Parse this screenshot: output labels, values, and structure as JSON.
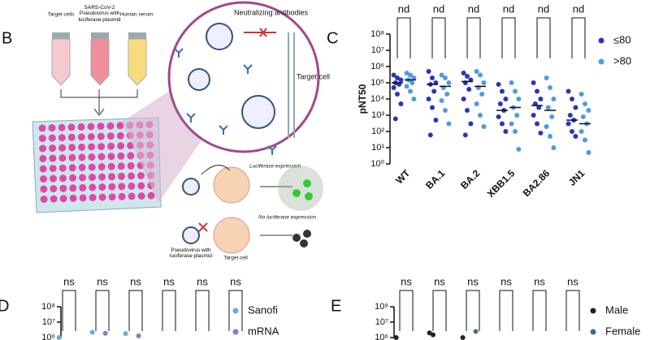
{
  "diagram": {
    "panel": "B",
    "tube_labels": [
      "Target cells",
      "SARS-CoV-2 Pseudovirus with luciferase plasmid",
      "Human serum"
    ],
    "neutralizing": "Neutralizing antibodies",
    "zoom_target": "Target cell",
    "luciferase": "Luciferase expression",
    "no_luciferase": "No luciferase expression",
    "pseudovirus": "Pseudovirus with luciferase plasmid",
    "target_cell": "Target cell"
  },
  "chart_data": [
    {
      "type": "dot",
      "panel": "C",
      "ylabel": "pNT50",
      "log": true,
      "categories": [
        "WT",
        "BA.1",
        "BA.2",
        "XBB1.5",
        "BA2.86",
        "JN1"
      ],
      "annotations": [
        "nd",
        "nd",
        "nd",
        "nd",
        "nd",
        "nd"
      ],
      "ylim": [
        1,
        100000000
      ],
      "yticks": [
        {
          "value": 1,
          "label": "10⁰"
        },
        {
          "value": 10,
          "label": "10¹"
        },
        {
          "value": 100,
          "label": "10²"
        },
        {
          "value": 1000,
          "label": "10³"
        },
        {
          "value": 10000,
          "label": "10⁴"
        },
        {
          "value": 100000,
          "label": "10⁵"
        },
        {
          "value": 1000000,
          "label": "10⁶"
        },
        {
          "value": 10000000,
          "label": "10⁷"
        },
        {
          "value": 100000000,
          "label": "10⁸"
        }
      ],
      "legend": "right",
      "series": [
        {
          "name": "≤80",
          "color": "#2a35b8",
          "values": [
            [
              300000,
              200000,
              150000,
              100000,
              80000,
              50000,
              20000,
              5000,
              600
            ],
            [
              500000,
              200000,
              100000,
              80000,
              30000,
              10000,
              3000,
              500,
              60
            ],
            [
              400000,
              250000,
              150000,
              100000,
              40000,
              10000,
              2000,
              300,
              60
            ],
            [
              80000,
              30000,
              10000,
              5000,
              2000,
              800,
              300,
              100
            ],
            [
              100000,
              30000,
              10000,
              5000,
              3000,
              1000,
              300,
              80
            ],
            [
              30000,
              10000,
              3000,
              1000,
              500,
              300,
              100,
              50
            ]
          ],
          "medians": [
            100000,
            80000,
            120000,
            2000,
            4000,
            500
          ]
        },
        {
          "name": ">80",
          "color": "#4f9be0",
          "values": [
            [
              400000,
              300000,
              200000,
              150000,
              100000,
              60000,
              30000,
              10000
            ],
            [
              300000,
              200000,
              100000,
              50000,
              20000,
              8000,
              2000,
              300
            ],
            [
              500000,
              300000,
              100000,
              50000,
              20000,
              5000,
              1000,
              200
            ],
            [
              100000,
              30000,
              10000,
              3000,
              1000,
              300,
              100,
              8
            ],
            [
              200000,
              50000,
              10000,
              3000,
              800,
              200,
              50,
              10
            ],
            [
              20000,
              5000,
              2000,
              800,
              300,
              100,
              30,
              5
            ]
          ],
          "medians": [
            150000,
            60000,
            60000,
            3000,
            2000,
            300
          ]
        }
      ]
    },
    {
      "type": "dot",
      "panel": "D",
      "log": true,
      "annotations": [
        "ns",
        "ns",
        "ns",
        "ns",
        "ns",
        "ns"
      ],
      "ylim": [
        1000000,
        100000000
      ],
      "yticks": [
        {
          "value": 1000000,
          "label": "10⁶"
        },
        {
          "value": 10000000,
          "label": "10⁷"
        },
        {
          "value": 100000000,
          "label": "10⁸"
        }
      ],
      "legend": "right",
      "series": [
        {
          "name": "Sanofi",
          "color": "#6fa8d8",
          "values": [
            [
              1000000
            ],
            [
              2200000
            ],
            [
              1800000
            ],
            [],
            [],
            []
          ]
        },
        {
          "name": "mRNA",
          "color": "#9b6fd0",
          "values": [
            [],
            [
              1900000
            ],
            [
              1300000
            ],
            [],
            [],
            []
          ]
        }
      ]
    },
    {
      "type": "dot",
      "panel": "E",
      "log": true,
      "annotations": [
        "ns",
        "ns",
        "ns",
        "ns",
        "ns",
        "ns"
      ],
      "ylim": [
        1000000,
        100000000
      ],
      "yticks": [
        {
          "value": 1000000,
          "label": "10⁶"
        },
        {
          "value": 10000000,
          "label": "10⁷"
        },
        {
          "value": 100000000,
          "label": "10⁸"
        }
      ],
      "legend": "right",
      "series": [
        {
          "name": "Male",
          "color": "#222222",
          "values": [
            [
              1000000
            ],
            [
              2000000,
              1500000
            ],
            [
              1000000
            ],
            [],
            [],
            []
          ]
        },
        {
          "name": "Female",
          "color": "#3f6e8c",
          "values": [
            [],
            [],
            [
              2500000
            ],
            [],
            [],
            []
          ]
        }
      ]
    }
  ]
}
